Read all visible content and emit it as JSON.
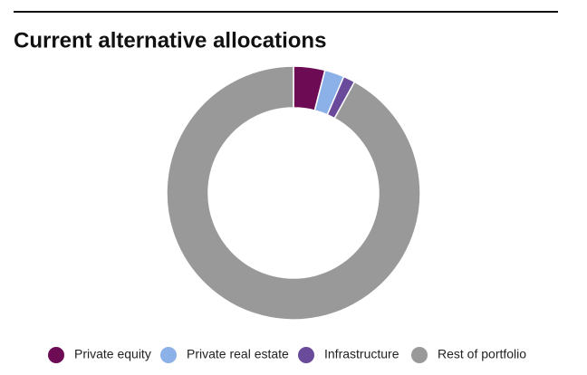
{
  "chart_data": {
    "type": "donut",
    "title": "Current alternative allocations",
    "categories": [
      "Private equity",
      "Private real estate",
      "Infrastructure",
      "Rest of portfolio"
    ],
    "values": [
      4,
      2.5,
      1.5,
      92
    ],
    "colors": [
      "#6e0b55",
      "#8cb0e8",
      "#6a4a9a",
      "#999999"
    ]
  }
}
